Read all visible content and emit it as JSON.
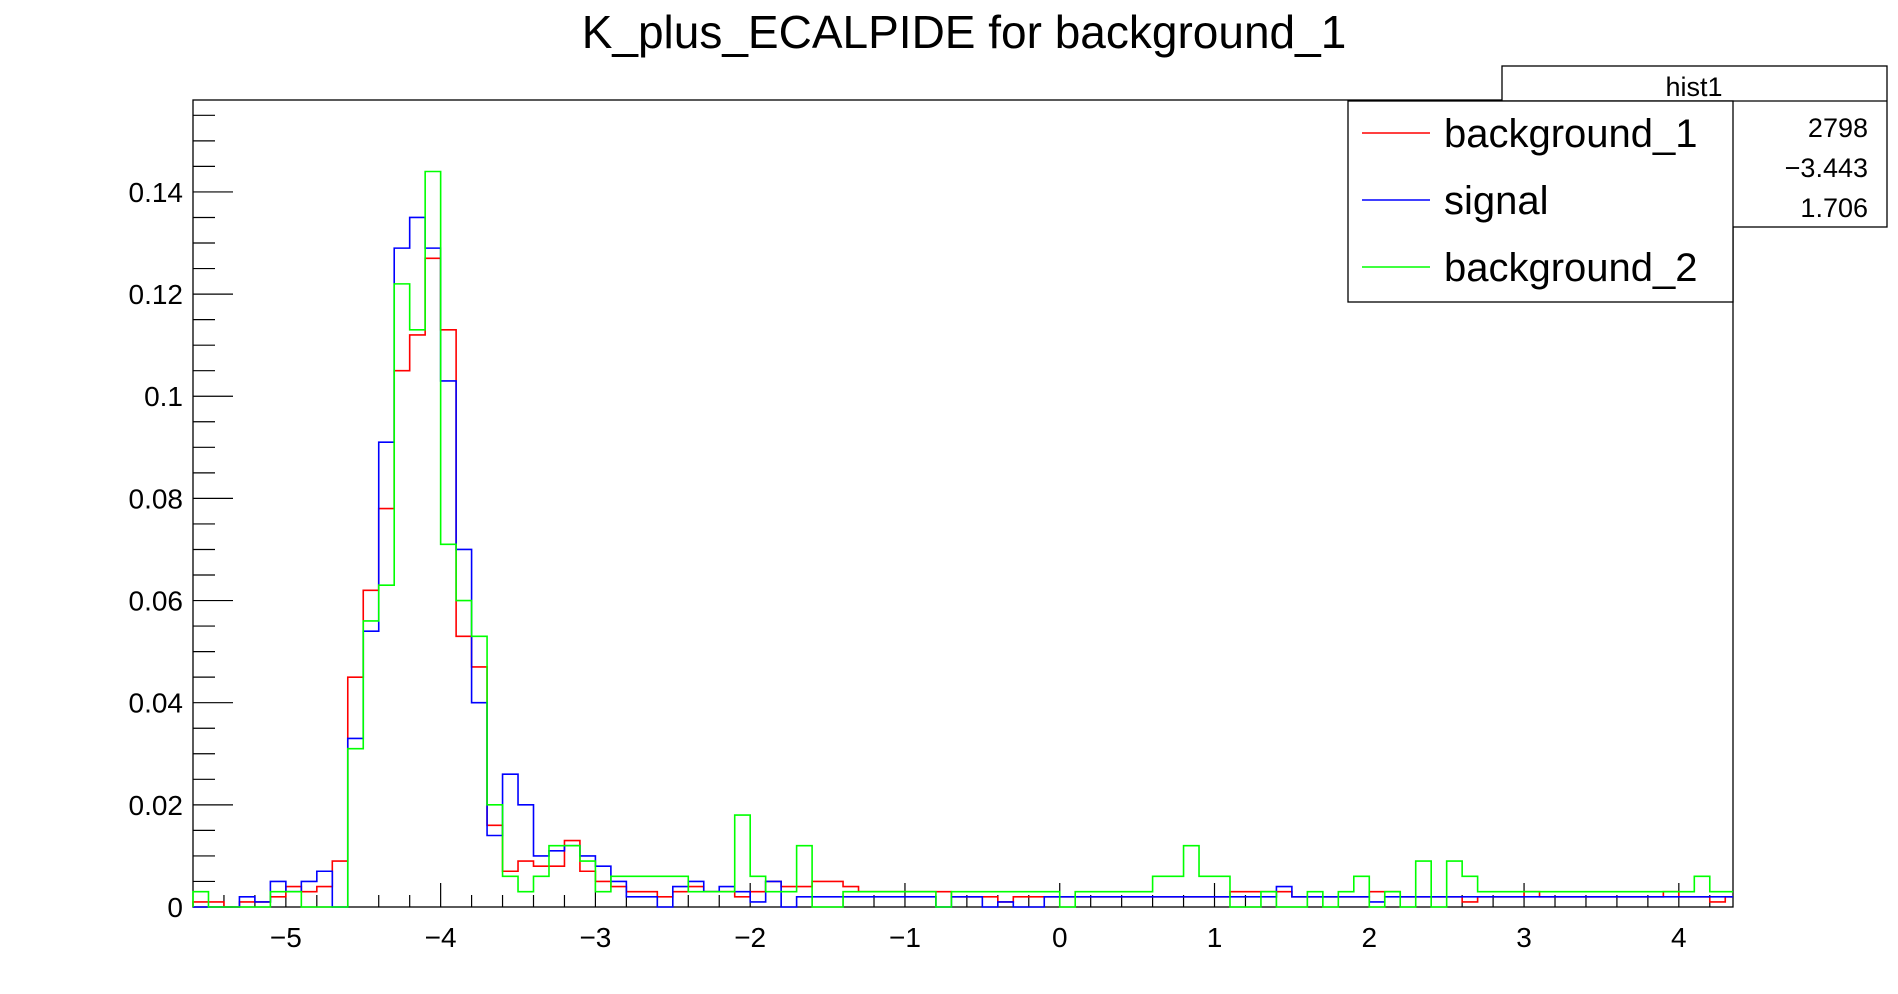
{
  "chart_data": {
    "type": "histogram",
    "title": "K_plus_ECALPIDE for background_1",
    "xlabel": "",
    "ylabel": "",
    "xlim": [
      -5.6,
      4.35
    ],
    "ylim": [
      0,
      0.158
    ],
    "xticks": [
      -5,
      -4,
      -3,
      -2,
      -1,
      0,
      1,
      2,
      3,
      4
    ],
    "xtick_labels": [
      "−5",
      "−4",
      "−3",
      "−2",
      "−1",
      "0",
      "1",
      "2",
      "3",
      "4"
    ],
    "yticks": [
      0,
      0.02,
      0.04,
      0.06,
      0.08,
      0.1,
      0.12,
      0.14
    ],
    "ytick_labels": [
      "0",
      "0.02",
      "0.04",
      "0.06",
      "0.08",
      "0.1",
      "0.12",
      "0.14"
    ],
    "bin_start": -5.6,
    "bin_width": 0.1,
    "series": [
      {
        "name": "background_1",
        "color": "#ff0000",
        "values": [
          0.001,
          0.001,
          0,
          0.001,
          0.001,
          0.002,
          0.004,
          0.003,
          0.004,
          0.009,
          0.045,
          0.062,
          0.078,
          0.105,
          0.112,
          0.127,
          0.113,
          0.053,
          0.047,
          0.016,
          0.007,
          0.009,
          0.008,
          0.008,
          0.013,
          0.007,
          0.005,
          0.004,
          0.003,
          0.003,
          0.002,
          0.003,
          0.004,
          0.003,
          0.003,
          0.002,
          0.003,
          0.005,
          0.004,
          0.004,
          0.005,
          0.005,
          0.004,
          0.003,
          0.003,
          0.003,
          0.003,
          0.003,
          0.003,
          0.002,
          0.002,
          0.002,
          0.001,
          0.002,
          0.002,
          0.002,
          0.002,
          0.002,
          0.002,
          0.002,
          0.002,
          0.002,
          0.002,
          0.002,
          0.002,
          0.002,
          0.002,
          0.003,
          0.003,
          0.003,
          0.003,
          0.002,
          0.002,
          0.002,
          0.002,
          0.002,
          0.003,
          0.003,
          0.002,
          0.002,
          0.002,
          0.002,
          0.001,
          0.002,
          0.002,
          0.002,
          0.003,
          0.002,
          0.002,
          0.002,
          0.002,
          0.002,
          0.002,
          0.002,
          0.002,
          0.003,
          0.002,
          0.002,
          0.001,
          0.002
        ]
      },
      {
        "name": "signal",
        "color": "#0000ff",
        "values": [
          0,
          0,
          0,
          0.002,
          0.001,
          0.005,
          0.003,
          0.005,
          0.007,
          0,
          0.033,
          0.054,
          0.091,
          0.129,
          0.135,
          0.129,
          0.103,
          0.07,
          0.04,
          0.014,
          0.026,
          0.02,
          0.01,
          0.011,
          0.012,
          0.01,
          0.008,
          0.005,
          0.002,
          0.002,
          0,
          0.004,
          0.005,
          0.003,
          0.004,
          0.003,
          0.001,
          0.005,
          0,
          0.002,
          0.002,
          0.002,
          0.002,
          0.002,
          0.002,
          0.002,
          0.002,
          0.002,
          0,
          0.002,
          0.002,
          0,
          0.001,
          0,
          0,
          0.002,
          0.002,
          0.002,
          0.002,
          0.002,
          0.002,
          0.002,
          0.002,
          0.002,
          0.002,
          0.002,
          0.002,
          0.002,
          0.002,
          0.002,
          0.004,
          0.002,
          0.002,
          0.002,
          0.002,
          0.002,
          0.001,
          0.002,
          0.002,
          0.002,
          0.002,
          0.002,
          0.002,
          0.002,
          0.002,
          0.002,
          0.002,
          0.002,
          0.002,
          0.002,
          0.002,
          0.002,
          0.002,
          0.002,
          0.002,
          0.002,
          0.002,
          0.002,
          0.002,
          0.002
        ]
      },
      {
        "name": "background_2",
        "color": "#00ff00",
        "values": [
          0.003,
          0,
          0,
          0,
          0,
          0.003,
          0.003,
          0,
          0,
          0,
          0.031,
          0.056,
          0.063,
          0.122,
          0.113,
          0.144,
          0.071,
          0.06,
          0.053,
          0.02,
          0.006,
          0.003,
          0.006,
          0.012,
          0.012,
          0.009,
          0.003,
          0.006,
          0.006,
          0.006,
          0.006,
          0.006,
          0.003,
          0.003,
          0.003,
          0.018,
          0.006,
          0.003,
          0.003,
          0.012,
          0,
          0,
          0.003,
          0.003,
          0.003,
          0.003,
          0.003,
          0.003,
          0,
          0.003,
          0.003,
          0.003,
          0.003,
          0.003,
          0.003,
          0.003,
          0,
          0.003,
          0.003,
          0.003,
          0.003,
          0.003,
          0.006,
          0.006,
          0.012,
          0.006,
          0.006,
          0,
          0,
          0.003,
          0,
          0,
          0.003,
          0,
          0.003,
          0.006,
          0,
          0.003,
          0,
          0.009,
          0,
          0.009,
          0.006,
          0.003,
          0.003,
          0.003,
          0.003,
          0.003,
          0.003,
          0.003,
          0.003,
          0.003,
          0.003,
          0.003,
          0.003,
          0.003,
          0.003,
          0.006,
          0.003,
          0.003
        ]
      }
    ],
    "legend": {
      "position": "top-right",
      "entries": [
        "background_1",
        "signal",
        "background_2"
      ]
    },
    "stats_box": {
      "title": "hist1",
      "values": [
        "2798",
        "−3.443",
        "1.706"
      ]
    },
    "grid": false
  }
}
